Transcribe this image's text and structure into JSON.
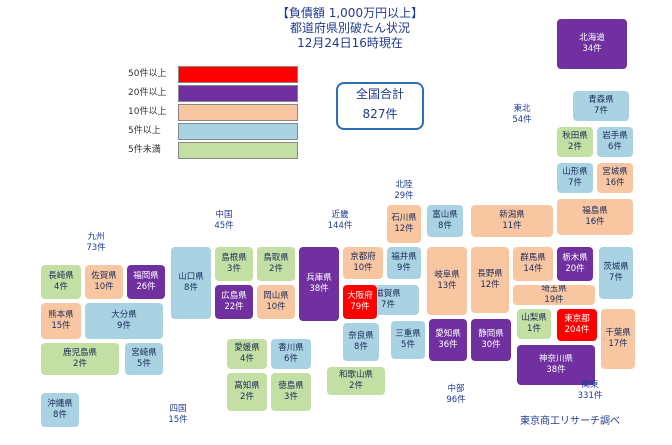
{
  "title": {
    "line1": "【負債額 1,000万円以上】",
    "line2": "都道府県別破たん状況",
    "line3": "12月24日16時現在"
  },
  "total": {
    "label": "全国合計",
    "value": "827件"
  },
  "legend": [
    {
      "label": "50件以上",
      "color": "#ff0000"
    },
    {
      "label": "20件以上",
      "color": "#7030a0"
    },
    {
      "label": "10件以上",
      "color": "#f8c7a2"
    },
    {
      "label": "5件以上",
      "color": "#a9d3e2"
    },
    {
      "label": "5件未満",
      "color": "#c3dfa4"
    }
  ],
  "regions": [
    {
      "id": "tohoku",
      "name": "東北",
      "count": "54件"
    },
    {
      "id": "hokuriku",
      "name": "北陸",
      "count": "29件"
    },
    {
      "id": "chugoku",
      "name": "中国",
      "count": "45件"
    },
    {
      "id": "kinki",
      "name": "近畿",
      "count": "144件"
    },
    {
      "id": "kyushu",
      "name": "九州",
      "count": "73件"
    },
    {
      "id": "shikoku",
      "name": "四国",
      "count": "15件"
    },
    {
      "id": "chubu",
      "name": "中部",
      "count": "96件"
    },
    {
      "id": "kanto",
      "name": "関東",
      "count": "331件"
    }
  ],
  "prefectures": [
    {
      "id": "hokkaido",
      "name": "北海道",
      "count": "34件",
      "level": "20"
    },
    {
      "id": "aomori",
      "name": "青森県",
      "count": "7件",
      "level": "5"
    },
    {
      "id": "akita",
      "name": "秋田県",
      "count": "2件",
      "level": "lt5"
    },
    {
      "id": "iwate",
      "name": "岩手県",
      "count": "6件",
      "level": "5"
    },
    {
      "id": "yamagata",
      "name": "山形県",
      "count": "7件",
      "level": "5"
    },
    {
      "id": "miyagi",
      "name": "宮城県",
      "count": "16件",
      "level": "10"
    },
    {
      "id": "fukushima",
      "name": "福島県",
      "count": "16件",
      "level": "10"
    },
    {
      "id": "niigata",
      "name": "新潟県",
      "count": "11件",
      "level": "10"
    },
    {
      "id": "ishikawa",
      "name": "石川県",
      "count": "12件",
      "level": "10"
    },
    {
      "id": "toyama",
      "name": "富山県",
      "count": "8件",
      "level": "5"
    },
    {
      "id": "fukui",
      "name": "福井県",
      "count": "9件",
      "level": "5"
    },
    {
      "id": "tochigi",
      "name": "栃木県",
      "count": "20件",
      "level": "20"
    },
    {
      "id": "gunma",
      "name": "群馬県",
      "count": "14件",
      "level": "10"
    },
    {
      "id": "ibaraki",
      "name": "茨城県",
      "count": "7件",
      "level": "5"
    },
    {
      "id": "nagano",
      "name": "長野県",
      "count": "12件",
      "level": "10"
    },
    {
      "id": "gifu",
      "name": "岐阜県",
      "count": "13件",
      "level": "10"
    },
    {
      "id": "saitama",
      "name": "埼玉県",
      "count": "19件",
      "level": "10"
    },
    {
      "id": "yamanashi",
      "name": "山梨県",
      "count": "1件",
      "level": "lt5"
    },
    {
      "id": "tokyo",
      "name": "東京都",
      "count": "204件",
      "level": "50"
    },
    {
      "id": "chiba",
      "name": "千葉県",
      "count": "17件",
      "level": "10"
    },
    {
      "id": "kanagawa",
      "name": "神奈川県",
      "count": "38件",
      "level": "20"
    },
    {
      "id": "shizuoka",
      "name": "静岡県",
      "count": "30件",
      "level": "20"
    },
    {
      "id": "aichi",
      "name": "愛知県",
      "count": "36件",
      "level": "20"
    },
    {
      "id": "mie",
      "name": "三重県",
      "count": "5件",
      "level": "5"
    },
    {
      "id": "shiga",
      "name": "滋賀県",
      "count": "7件",
      "level": "5"
    },
    {
      "id": "kyoto",
      "name": "京都府",
      "count": "10件",
      "level": "10"
    },
    {
      "id": "osaka",
      "name": "大阪府",
      "count": "79件",
      "level": "50"
    },
    {
      "id": "nara",
      "name": "奈良県",
      "count": "8件",
      "level": "5"
    },
    {
      "id": "wakayama",
      "name": "和歌山県",
      "count": "2件",
      "level": "lt5"
    },
    {
      "id": "hyogo",
      "name": "兵庫県",
      "count": "38件",
      "level": "20"
    },
    {
      "id": "tottori",
      "name": "鳥取県",
      "count": "2件",
      "level": "lt5"
    },
    {
      "id": "shimane",
      "name": "島根県",
      "count": "3件",
      "level": "lt5"
    },
    {
      "id": "okayama",
      "name": "岡山県",
      "count": "10件",
      "level": "10"
    },
    {
      "id": "hiroshima",
      "name": "広島県",
      "count": "22件",
      "level": "20"
    },
    {
      "id": "yamaguchi",
      "name": "山口県",
      "count": "8件",
      "level": "5"
    },
    {
      "id": "ehime",
      "name": "愛媛県",
      "count": "4件",
      "level": "lt5"
    },
    {
      "id": "kagawa",
      "name": "香川県",
      "count": "6件",
      "level": "5"
    },
    {
      "id": "kochi",
      "name": "高知県",
      "count": "2件",
      "level": "lt5"
    },
    {
      "id": "tokushima",
      "name": "徳島県",
      "count": "3件",
      "level": "lt5"
    },
    {
      "id": "fukuoka",
      "name": "福岡県",
      "count": "26件",
      "level": "20"
    },
    {
      "id": "saga",
      "name": "佐賀県",
      "count": "10件",
      "level": "10"
    },
    {
      "id": "nagasaki",
      "name": "長崎県",
      "count": "4件",
      "level": "lt5"
    },
    {
      "id": "kumamoto",
      "name": "熊本県",
      "count": "15件",
      "level": "10"
    },
    {
      "id": "oita",
      "name": "大分県",
      "count": "9件",
      "level": "5"
    },
    {
      "id": "miyazaki",
      "name": "宮崎県",
      "count": "5件",
      "level": "5"
    },
    {
      "id": "kagoshima",
      "name": "鹿児島県",
      "count": "2件",
      "level": "lt5"
    },
    {
      "id": "okinawa",
      "name": "沖縄県",
      "count": "8件",
      "level": "5"
    }
  ],
  "credit": "東京商工リサーチ調べ"
}
